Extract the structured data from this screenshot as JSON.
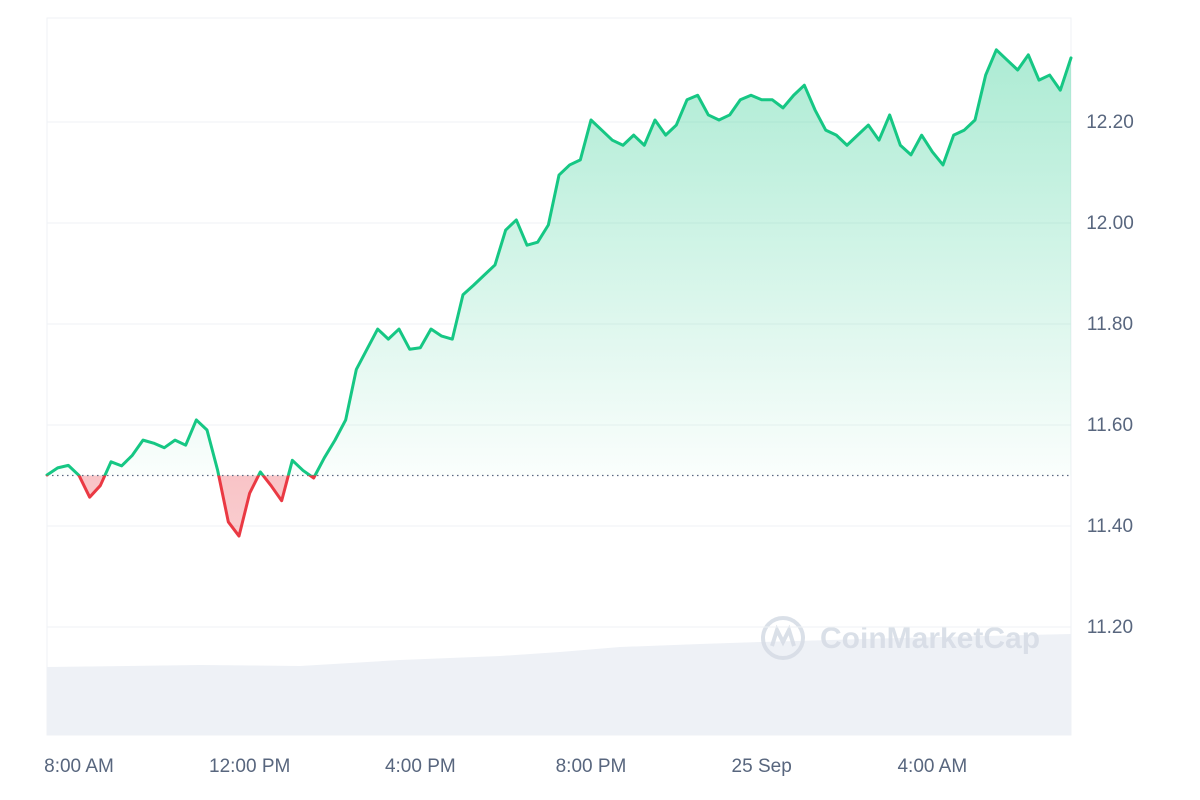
{
  "chart_data": {
    "type": "line",
    "categories": [
      null,
      null,
      null,
      "8:00 AM",
      null,
      null,
      null,
      null,
      null,
      null,
      null,
      null,
      null,
      null,
      null,
      null,
      null,
      null,
      null,
      "12:00 PM",
      null,
      null,
      null,
      null,
      null,
      null,
      null,
      null,
      null,
      null,
      null,
      null,
      null,
      null,
      null,
      "4:00 PM",
      null,
      null,
      null,
      null,
      null,
      null,
      null,
      null,
      null,
      null,
      null,
      null,
      null,
      null,
      null,
      "8:00 PM",
      null,
      null,
      null,
      null,
      null,
      null,
      null,
      null,
      null,
      null,
      null,
      null,
      null,
      null,
      null,
      "25 Sep",
      null,
      null,
      null,
      null,
      null,
      null,
      null,
      null,
      null,
      null,
      null,
      null,
      null,
      null,
      null,
      "4:00 AM",
      null,
      null,
      null,
      null,
      null,
      null,
      null,
      null,
      null,
      null,
      null,
      null,
      null
    ],
    "values": [
      11.501,
      11.515,
      11.52,
      11.5,
      11.457,
      11.48,
      11.527,
      11.519,
      11.54,
      11.57,
      11.564,
      11.555,
      11.57,
      11.56,
      11.61,
      11.59,
      11.51,
      11.408,
      11.38,
      11.465,
      11.507,
      11.48,
      11.45,
      11.53,
      11.51,
      11.495,
      11.535,
      11.57,
      11.61,
      11.71,
      11.75,
      11.79,
      11.77,
      11.79,
      11.75,
      11.753,
      11.79,
      11.776,
      11.77,
      11.858,
      11.877,
      11.897,
      11.917,
      11.986,
      12.006,
      11.956,
      11.962,
      11.996,
      12.095,
      12.115,
      12.125,
      12.204,
      12.184,
      12.164,
      12.154,
      12.174,
      12.154,
      12.204,
      12.174,
      12.194,
      12.244,
      12.253,
      12.214,
      12.204,
      12.214,
      12.244,
      12.253,
      12.244,
      12.244,
      12.228,
      12.253,
      12.273,
      12.224,
      12.184,
      12.174,
      12.154,
      12.174,
      12.194,
      12.164,
      12.214,
      12.154,
      12.135,
      12.174,
      12.141,
      12.115,
      12.174,
      12.184,
      12.204,
      12.293,
      12.343,
      12.323,
      12.303,
      12.333,
      12.283,
      12.293,
      12.263,
      12.327
    ],
    "baseline": 11.5,
    "color": "#16c784",
    "down_color": "#ea3943",
    "ylim": [
      10.986,
      12.406
    ],
    "yticks": [
      {
        "value": 11.2,
        "label": "11.20"
      },
      {
        "value": 11.4,
        "label": "11.40"
      },
      {
        "value": 11.6,
        "label": "11.60"
      },
      {
        "value": 11.8,
        "label": "11.80"
      },
      {
        "value": 12.0,
        "label": "12.00"
      },
      {
        "value": 12.2,
        "label": "12.20"
      }
    ],
    "grid": true,
    "watermark": "CoinMarketCap"
  }
}
